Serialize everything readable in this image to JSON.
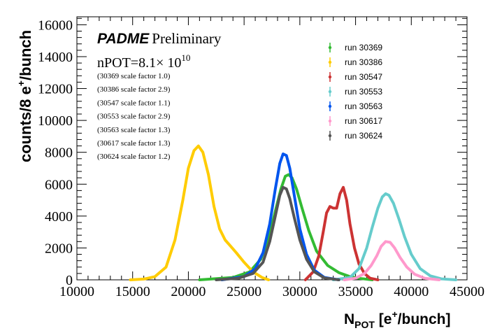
{
  "chart_data": {
    "type": "line",
    "title": "",
    "xlabel": {
      "main": "N",
      "sub": "POT",
      "unit_open": " [e",
      "sup": "+",
      "unit_close": "/bunch]"
    },
    "ylabel": {
      "main": "counts/8 e",
      "sup": "+",
      "tail": "/bunch"
    },
    "xlim": [
      10000,
      45000
    ],
    "ylim": [
      0,
      16500
    ],
    "x_ticks": [
      "10000",
      "15000",
      "20000",
      "25000",
      "30000",
      "35000",
      "40000",
      "45000"
    ],
    "y_ticks": [
      "0",
      "2000",
      "4000",
      "6000",
      "8000",
      "10000",
      "12000",
      "14000",
      "16000"
    ],
    "branding": {
      "experiment": "PADME",
      "status": "Preliminary"
    },
    "npot": {
      "label": "nPOT=8.1",
      "times": "× 10",
      "exponent": "10"
    },
    "scale_notes": [
      "(30369 scale factor 1.0)",
      "(30386 scale factor 2.9)",
      "(30547 scale factor 1.1)",
      "(30553 scale factor 2.9)",
      "(30563 scale factor 1.3)",
      "(30617 scale factor 1.3)",
      "(30624 scale factor 1.2)"
    ],
    "series": [
      {
        "name": "run 30369",
        "color": "#33bb33",
        "x": [
          21000,
          24000,
          25500,
          26500,
          27200,
          27800,
          28300,
          28700,
          29000,
          29300,
          29700,
          30200,
          30800,
          31500,
          32500,
          33500,
          34500,
          35500,
          36500
        ],
        "y": [
          0,
          150,
          500,
          1300,
          2600,
          4300,
          5700,
          6500,
          6600,
          6400,
          5700,
          4500,
          3100,
          1800,
          900,
          450,
          200,
          80,
          0
        ]
      },
      {
        "name": "run 30386",
        "color": "#ffcc00",
        "x": [
          14800,
          16000,
          17000,
          18000,
          18800,
          19500,
          20000,
          20500,
          20900,
          21300,
          21800,
          22300,
          22800,
          23300,
          23800,
          24300,
          25000,
          25800,
          26600,
          27200
        ],
        "y": [
          0,
          50,
          200,
          800,
          2500,
          5000,
          7000,
          8100,
          8400,
          8000,
          6600,
          4600,
          3200,
          2500,
          2100,
          1700,
          1100,
          500,
          150,
          0
        ]
      },
      {
        "name": "run 30547",
        "color": "#cc3333",
        "x": [
          30500,
          31200,
          31700,
          32100,
          32400,
          32700,
          33000,
          33300,
          33600,
          33900,
          34200,
          34500,
          34900,
          35300,
          35800,
          36300,
          37000
        ],
        "y": [
          0,
          500,
          1500,
          3000,
          4200,
          4600,
          4500,
          4500,
          5400,
          5800,
          5000,
          3500,
          2000,
          1000,
          400,
          100,
          0
        ]
      },
      {
        "name": "run 30553",
        "color": "#66cccc",
        "x": [
          33000,
          34500,
          35300,
          36000,
          36500,
          37000,
          37400,
          37700,
          38000,
          38400,
          38900,
          39400,
          40000,
          40800,
          41700,
          42700,
          44000
        ],
        "y": [
          0,
          150,
          700,
          2000,
          3300,
          4500,
          5200,
          5400,
          5300,
          4800,
          3800,
          2700,
          1600,
          700,
          250,
          60,
          0
        ]
      },
      {
        "name": "run 30563",
        "color": "#0055ee",
        "x": [
          23000,
          25000,
          26000,
          26700,
          27300,
          27800,
          28200,
          28500,
          28800,
          29100,
          29500,
          30000,
          30600,
          31300,
          32200,
          33500
        ],
        "y": [
          0,
          200,
          700,
          1700,
          3500,
          5700,
          7300,
          7900,
          7800,
          7000,
          5300,
          3200,
          1600,
          600,
          150,
          0
        ]
      },
      {
        "name": "run 30617",
        "color": "#ff99cc",
        "x": [
          34000,
          35000,
          35800,
          36400,
          36900,
          37300,
          37700,
          38100,
          38500,
          39000,
          39600,
          40300,
          41200,
          42500
        ],
        "y": [
          0,
          100,
          400,
          900,
          1500,
          2100,
          2400,
          2350,
          2000,
          1400,
          800,
          350,
          100,
          0
        ]
      },
      {
        "name": "run 30624",
        "color": "#555555",
        "x": [
          22500,
          24500,
          25800,
          26700,
          27300,
          27800,
          28200,
          28500,
          28800,
          29100,
          29500,
          30000,
          30600,
          31300,
          32200,
          33500
        ],
        "y": [
          0,
          100,
          400,
          1100,
          2400,
          4000,
          5300,
          5800,
          5700,
          5100,
          3900,
          2500,
          1300,
          500,
          120,
          0
        ]
      }
    ]
  }
}
